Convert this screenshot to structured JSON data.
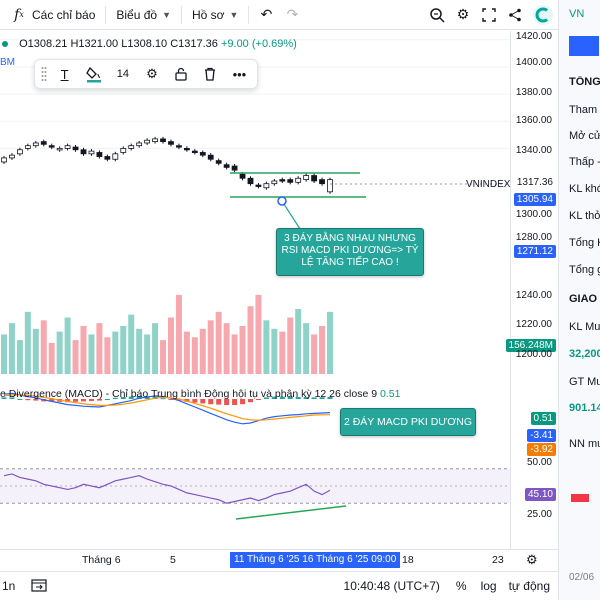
{
  "toolbar": {
    "indicators_label": "Các chỉ báo",
    "chart_type_label": "Biểu đồ",
    "profile_label": "Hồ sơ"
  },
  "legend": {
    "open": "O1308.21",
    "high": "H1321.00",
    "low": "L1308.10",
    "close": "C1317.36",
    "change": "+9.00 (+0.69%)",
    "bm": "BM"
  },
  "drawing_toolbar": {
    "font_size": "14"
  },
  "symbol": "VNINDEX",
  "price_axis": {
    "ticks": [
      "1420.00",
      "1400.00",
      "1380.00",
      "1360.00",
      "1340.00",
      "1300.00",
      "1280.00",
      "1240.00",
      "1220.00",
      "1200.00",
      "50.00",
      "25.00"
    ],
    "tags": {
      "last": "1317.36",
      "crosshair": "1305.94",
      "level": "1271.12",
      "volume": "156.248M",
      "macd1": "0.51",
      "macd2": "-3.41",
      "macd3": "-3.92",
      "rsi": "45.10"
    }
  },
  "annotations": {
    "callout1": "3 ĐÁY BẰNG NHAU NHƯNG RSI MACD PKI DƯƠNG=> TỶ LỆ TĂNG TIẾP CAO !",
    "callout2": "2 ĐÁY MACD PKI DƯƠNG"
  },
  "macd": {
    "title": "e Divergence (MACD) - Chỉ báo Trung bình Động hội tụ và phân kỳ 12 26 close 9",
    "value": "0.51"
  },
  "time_axis": {
    "labels": [
      "Tháng 6",
      "5",
      "18",
      "23"
    ],
    "selected_range": "11 Tháng 6 '25    16 Tháng 6 '25    09:00"
  },
  "status": {
    "interval": "1n",
    "clock": "10:40:48 (UTC+7)",
    "percent": "%",
    "log": "log",
    "auto": "tự động"
  },
  "right_panel": {
    "tab": "VN",
    "rows": [
      "TỔNG",
      "Tham c",
      "Mở cử",
      "Thấp -",
      "KL khớ",
      "KL thỏ",
      "Tổng K",
      "Tổng g",
      "GIAO",
      "KL Mu",
      "32,200",
      "GT Mu",
      "901.14",
      "NN mu",
      "02/06"
    ]
  },
  "colors": {
    "up": "#089981",
    "down": "#f23645",
    "accent": "#2962ff",
    "callout": "#26a69a"
  },
  "chart_data": {
    "type": "candlestick",
    "symbol": "VNINDEX",
    "yrange": [
      1260,
      1425
    ],
    "closes": [
      1333,
      1335,
      1339,
      1342,
      1344,
      1343,
      1341,
      1340,
      1342,
      1339,
      1336,
      1338,
      1334,
      1332,
      1336,
      1340,
      1342,
      1344,
      1346,
      1347,
      1345,
      1343,
      1341,
      1339,
      1337,
      1335,
      1332,
      1329,
      1326,
      1324,
      1318,
      1314,
      1312,
      1314,
      1316,
      1316,
      1315,
      1318,
      1320,
      1316,
      1314,
      1317
    ],
    "opens": [
      1330,
      1333,
      1336,
      1340,
      1342,
      1345,
      1342,
      1339,
      1340,
      1341,
      1339,
      1336,
      1337,
      1334,
      1332,
      1337,
      1340,
      1342,
      1344,
      1345,
      1347,
      1345,
      1342,
      1340,
      1338,
      1337,
      1335,
      1331,
      1328,
      1327,
      1321,
      1318,
      1313,
      1311,
      1314,
      1317,
      1317,
      1315,
      1317,
      1320,
      1317,
      1308
    ],
    "volume_range": [
      0,
      200
    ],
    "volumes": [
      70,
      90,
      60,
      110,
      80,
      95,
      55,
      75,
      100,
      60,
      85,
      70,
      90,
      65,
      75,
      85,
      105,
      80,
      70,
      90,
      60,
      100,
      140,
      75,
      65,
      80,
      95,
      110,
      90,
      70,
      85,
      120,
      140,
      95,
      80,
      75,
      100,
      115,
      90,
      70,
      85,
      110
    ],
    "macd_range": [
      -8,
      4
    ],
    "macd": [
      1.2,
      1.4,
      1.0,
      0.6,
      0.3,
      -0.2,
      -0.6,
      -1.0,
      -1.4,
      -1.6,
      -1.8,
      -1.9,
      -2.0,
      -1.6,
      -1.2,
      -0.8,
      -0.4,
      0.2,
      0.5,
      0.8,
      0.6,
      0.2,
      -0.4,
      -1.2,
      -2.0,
      -2.8,
      -3.6,
      -4.4,
      -5.2,
      -5.8,
      -6.2,
      -6.0,
      -5.4,
      -4.8,
      -4.4,
      -4.2,
      -4.0,
      -3.9,
      -3.7,
      -3.6,
      -3.5,
      -3.41
    ],
    "signal": [
      0.8,
      1.0,
      1.0,
      0.9,
      0.7,
      0.4,
      0.1,
      -0.3,
      -0.6,
      -0.9,
      -1.2,
      -1.4,
      -1.6,
      -1.6,
      -1.5,
      -1.3,
      -1.0,
      -0.6,
      -0.2,
      0.2,
      0.4,
      0.3,
      0.0,
      -0.5,
      -1.1,
      -1.7,
      -2.3,
      -3.0,
      -3.7,
      -4.3,
      -4.9,
      -5.2,
      -5.3,
      -5.2,
      -5.0,
      -4.8,
      -4.6,
      -4.4,
      -4.2,
      -4.0,
      -3.95,
      -3.92
    ],
    "rsi_range": [
      0,
      100
    ],
    "rsi": [
      62,
      64,
      60,
      58,
      56,
      52,
      50,
      48,
      46,
      48,
      52,
      50,
      48,
      52,
      56,
      58,
      60,
      62,
      58,
      55,
      52,
      50,
      46,
      42,
      40,
      38,
      36,
      34,
      30,
      32,
      34,
      36,
      33,
      36,
      40,
      42,
      44,
      48,
      52,
      44,
      40,
      45.1
    ]
  }
}
